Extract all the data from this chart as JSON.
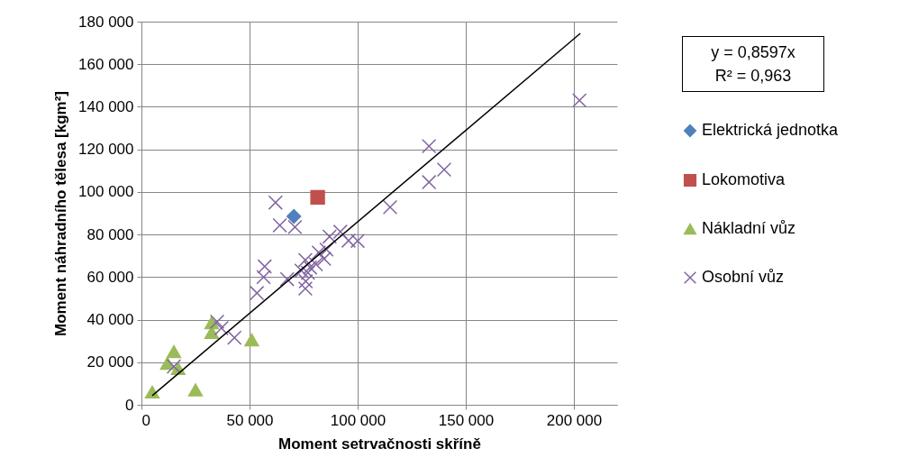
{
  "chart_data": {
    "type": "scatter",
    "xlabel": "Moment setrvačnosti skříně",
    "ylabel": "Moment náhradního tělesa [kgm²]",
    "annotations": [
      "y = 0,8597x",
      "R² = 0,963"
    ],
    "xlim": [
      0,
      220000
    ],
    "ylim": [
      0,
      180000
    ],
    "xticks": [
      {
        "value": 0,
        "label": "0"
      },
      {
        "value": 50000,
        "label": "50 000"
      },
      {
        "value": 100000,
        "label": "100 000"
      },
      {
        "value": 150000,
        "label": "150 000"
      },
      {
        "value": 200000,
        "label": "200 000"
      }
    ],
    "yticks": [
      {
        "value": 0,
        "label": "0"
      },
      {
        "value": 20000,
        "label": "20 000"
      },
      {
        "value": 40000,
        "label": "40 000"
      },
      {
        "value": 60000,
        "label": "60 000"
      },
      {
        "value": 80000,
        "label": "80 000"
      },
      {
        "value": 100000,
        "label": "100 000"
      },
      {
        "value": 120000,
        "label": "120 000"
      },
      {
        "value": 140000,
        "label": "140 000"
      },
      {
        "value": 160000,
        "label": "160 000"
      },
      {
        "value": 180000,
        "label": "180 000"
      }
    ],
    "grid": true,
    "legend": "right",
    "series": [
      {
        "name": "Elektrická jednotka",
        "color": "#4f81bd",
        "marker": "diamond",
        "x": [
          70500
        ],
        "values": [
          88500
        ]
      },
      {
        "name": "Lokomotiva",
        "color": "#c0504d",
        "marker": "square",
        "x": [
          81500
        ],
        "values": [
          97500
        ]
      },
      {
        "name": "Nákladní vůz",
        "color": "#9bbb59",
        "marker": "triangle",
        "x": [
          5000,
          25000,
          15000,
          12000,
          17000,
          32500,
          32500,
          51000
        ],
        "values": [
          6000,
          7000,
          25000,
          19500,
          17000,
          38500,
          34000,
          30500
        ]
      },
      {
        "name": "Osobní vůz",
        "color": "#8064a2",
        "marker": "cross",
        "x": [
          15000,
          35000,
          37000,
          43000,
          62000,
          64000,
          71000,
          57000,
          56500,
          53400,
          67400,
          75800,
          76000,
          74000,
          77000,
          78000,
          75800,
          80700,
          82000,
          84500,
          85600,
          87000,
          92000,
          95800,
          100000,
          133000,
          140000,
          133000,
          115000,
          202600
        ],
        "values": [
          18000,
          39000,
          36000,
          31500,
          95000,
          84300,
          83500,
          65000,
          60000,
          52500,
          59000,
          54600,
          58000,
          63000,
          62000,
          64500,
          68000,
          66000,
          71500,
          68600,
          72900,
          79000,
          81300,
          77100,
          77000,
          121500,
          110500,
          104600,
          92800,
          143000
        ]
      },
      {
        "type": "line",
        "color": "#000000",
        "marker": "none",
        "x": [
          5000,
          203000
        ],
        "values": [
          4300,
          174500
        ]
      }
    ]
  }
}
